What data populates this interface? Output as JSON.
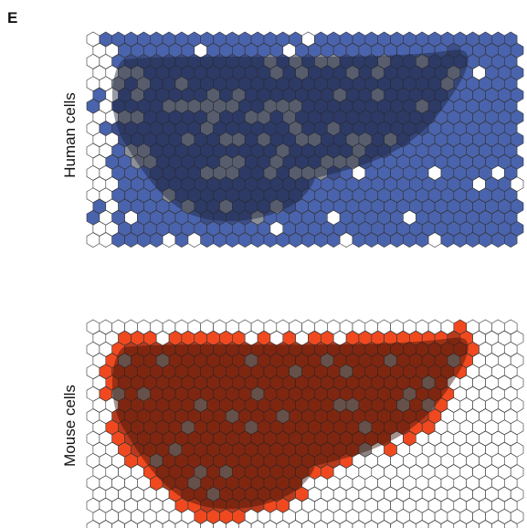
{
  "panel_label": "E",
  "panels": [
    {
      "label": "Human cells"
    },
    {
      "label": "Mouse cells"
    }
  ]
}
